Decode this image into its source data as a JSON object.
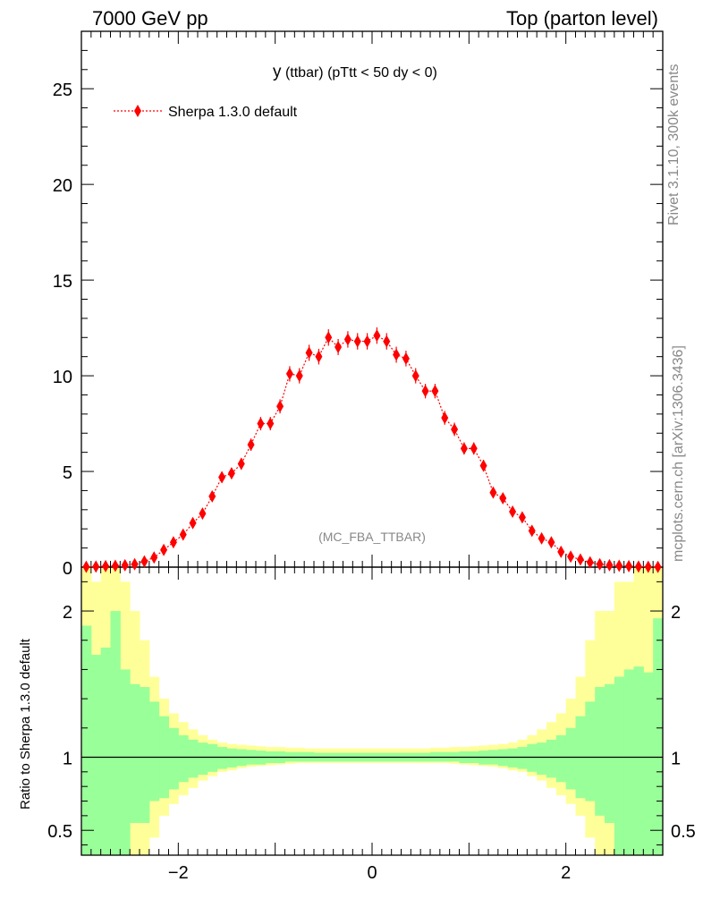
{
  "header": {
    "left": "7000 GeV pp",
    "right": "Top (parton level)"
  },
  "side_text": {
    "rivet": "Rivet 3.1.10,  300k events",
    "mcplots": "mcplots.cern.ch [arXiv:1306.3436]"
  },
  "colors": {
    "series": "#ff0000",
    "band_inner": "#99ff99",
    "band_outer": "#ffff99",
    "watermark": "#888888"
  },
  "chart_data": {
    "type": "scatter",
    "title": "y (ttbar) (pTtt < 50 dy < 0)",
    "title_main": "y",
    "title_rest": " (ttbar) (pTtt < 50 dy < 0)",
    "watermark": "(MC_FBA_TTBAR)",
    "legend": {
      "label": "Sherpa 1.3.0 default",
      "placement": "top-left"
    },
    "xlim": [
      -3.0,
      3.0
    ],
    "ylim": [
      0,
      28
    ],
    "ratio_ylim": [
      0.33,
      2.3
    ],
    "x_ticks": [
      -2,
      0,
      2
    ],
    "x_tick_labels": [
      "−2",
      "0",
      "2"
    ],
    "y_ticks": [
      0,
      5,
      10,
      15,
      20,
      25
    ],
    "y_tick_labels": [
      "0",
      "5",
      "10",
      "15",
      "20",
      "25"
    ],
    "ratio_ticks": [
      0.5,
      1,
      2
    ],
    "ratio_tick_labels": [
      "0.5",
      "1",
      "2"
    ],
    "ratio_ylabel": "Ratio to Sherpa 1.3.0 default",
    "bin_edges": [
      -3.0,
      -2.9,
      -2.8,
      -2.7,
      -2.6,
      -2.5,
      -2.4,
      -2.3,
      -2.2,
      -2.1,
      -2.0,
      -1.9,
      -1.8,
      -1.7,
      -1.6,
      -1.5,
      -1.4,
      -1.3,
      -1.2,
      -1.1,
      -1.0,
      -0.9,
      -0.8,
      -0.7,
      -0.6,
      -0.5,
      -0.4,
      -0.3,
      -0.2,
      -0.1,
      0.0,
      0.1,
      0.2,
      0.3,
      0.4,
      0.5,
      0.6,
      0.7,
      0.8,
      0.9,
      1.0,
      1.1,
      1.2,
      1.3,
      1.4,
      1.5,
      1.6,
      1.7,
      1.8,
      1.9,
      2.0,
      2.1,
      2.2,
      2.3,
      2.4,
      2.5,
      2.6,
      2.7,
      2.8,
      2.9,
      3.0
    ],
    "series": [
      {
        "name": "Sherpa 1.3.0 default",
        "x": [
          -2.95,
          -2.85,
          -2.75,
          -2.65,
          -2.55,
          -2.45,
          -2.35,
          -2.25,
          -2.15,
          -2.05,
          -1.95,
          -1.85,
          -1.75,
          -1.65,
          -1.55,
          -1.45,
          -1.35,
          -1.25,
          -1.15,
          -1.05,
          -0.95,
          -0.85,
          -0.75,
          -0.65,
          -0.55,
          -0.45,
          -0.35,
          -0.25,
          -0.15,
          -0.05,
          0.05,
          0.15,
          0.25,
          0.35,
          0.45,
          0.55,
          0.65,
          0.75,
          0.85,
          0.95,
          1.05,
          1.15,
          1.25,
          1.35,
          1.45,
          1.55,
          1.65,
          1.75,
          1.85,
          1.95,
          2.05,
          2.15,
          2.25,
          2.35,
          2.45,
          2.55,
          2.65,
          2.75,
          2.85,
          2.95
        ],
        "y": [
          0.02,
          0.03,
          0.05,
          0.07,
          0.1,
          0.15,
          0.3,
          0.5,
          0.9,
          1.3,
          1.7,
          2.3,
          2.8,
          3.7,
          4.7,
          4.9,
          5.4,
          6.4,
          7.5,
          7.5,
          8.4,
          10.1,
          10.0,
          11.2,
          11.0,
          12.0,
          11.5,
          11.9,
          11.8,
          11.8,
          12.1,
          11.8,
          11.1,
          10.9,
          10.0,
          9.2,
          9.2,
          7.8,
          7.2,
          6.2,
          6.2,
          5.3,
          3.9,
          3.6,
          2.9,
          2.6,
          1.9,
          1.5,
          1.3,
          0.8,
          0.55,
          0.4,
          0.25,
          0.15,
          0.1,
          0.07,
          0.05,
          0.03,
          0.02,
          0.01
        ],
        "yerr": [
          0.02,
          0.02,
          0.03,
          0.04,
          0.05,
          0.07,
          0.09,
          0.11,
          0.15,
          0.17,
          0.19,
          0.21,
          0.23,
          0.26,
          0.29,
          0.29,
          0.3,
          0.32,
          0.35,
          0.35,
          0.37,
          0.4,
          0.4,
          0.42,
          0.41,
          0.43,
          0.42,
          0.43,
          0.43,
          0.43,
          0.43,
          0.43,
          0.42,
          0.41,
          0.4,
          0.38,
          0.38,
          0.36,
          0.35,
          0.32,
          0.32,
          0.3,
          0.26,
          0.25,
          0.23,
          0.22,
          0.19,
          0.17,
          0.16,
          0.13,
          0.11,
          0.09,
          0.07,
          0.06,
          0.05,
          0.04,
          0.03,
          0.02,
          0.02,
          0.01
        ]
      }
    ],
    "ratio_band_inner": {
      "low": [
        0.3,
        0.3,
        0.3,
        0.3,
        0.3,
        0.55,
        0.55,
        0.7,
        0.72,
        0.78,
        0.83,
        0.86,
        0.88,
        0.9,
        0.92,
        0.93,
        0.94,
        0.95,
        0.95,
        0.96,
        0.96,
        0.97,
        0.97,
        0.97,
        0.97,
        0.97,
        0.97,
        0.97,
        0.97,
        0.97,
        0.97,
        0.97,
        0.97,
        0.97,
        0.97,
        0.97,
        0.97,
        0.97,
        0.97,
        0.96,
        0.96,
        0.95,
        0.95,
        0.94,
        0.93,
        0.92,
        0.9,
        0.88,
        0.86,
        0.83,
        0.78,
        0.72,
        0.7,
        0.6,
        0.55,
        0.3,
        0.3,
        0.3,
        0.3,
        0.3
      ],
      "high": [
        1.9,
        1.7,
        1.75,
        2.0,
        1.6,
        1.5,
        1.48,
        1.38,
        1.28,
        1.2,
        1.15,
        1.12,
        1.1,
        1.09,
        1.07,
        1.06,
        1.055,
        1.05,
        1.045,
        1.04,
        1.04,
        1.035,
        1.035,
        1.035,
        1.03,
        1.03,
        1.03,
        1.03,
        1.03,
        1.03,
        1.03,
        1.03,
        1.03,
        1.03,
        1.03,
        1.03,
        1.035,
        1.035,
        1.035,
        1.04,
        1.04,
        1.045,
        1.05,
        1.055,
        1.06,
        1.07,
        1.09,
        1.1,
        1.12,
        1.15,
        1.2,
        1.28,
        1.38,
        1.48,
        1.5,
        1.55,
        1.6,
        1.62,
        1.58,
        1.95
      ]
    },
    "ratio_band_outer": {
      "low": [
        0.3,
        0.3,
        0.3,
        0.3,
        0.3,
        0.3,
        0.3,
        0.45,
        0.6,
        0.68,
        0.74,
        0.79,
        0.84,
        0.87,
        0.9,
        0.91,
        0.925,
        0.935,
        0.94,
        0.945,
        0.95,
        0.955,
        0.96,
        0.96,
        0.96,
        0.96,
        0.96,
        0.96,
        0.96,
        0.96,
        0.96,
        0.96,
        0.96,
        0.96,
        0.96,
        0.96,
        0.96,
        0.96,
        0.955,
        0.95,
        0.945,
        0.94,
        0.935,
        0.925,
        0.91,
        0.9,
        0.87,
        0.84,
        0.79,
        0.74,
        0.68,
        0.6,
        0.45,
        0.3,
        0.3,
        0.3,
        0.3,
        0.3,
        0.3,
        0.3
      ],
      "high": [
        2.5,
        2.2,
        2.5,
        2.3,
        2.2,
        2.0,
        1.8,
        1.55,
        1.4,
        1.3,
        1.24,
        1.19,
        1.15,
        1.12,
        1.1,
        1.09,
        1.085,
        1.08,
        1.075,
        1.07,
        1.07,
        1.065,
        1.065,
        1.06,
        1.06,
        1.06,
        1.06,
        1.06,
        1.06,
        1.06,
        1.06,
        1.06,
        1.06,
        1.06,
        1.06,
        1.06,
        1.065,
        1.065,
        1.07,
        1.07,
        1.075,
        1.08,
        1.085,
        1.09,
        1.1,
        1.12,
        1.15,
        1.19,
        1.24,
        1.3,
        1.4,
        1.55,
        1.8,
        2.0,
        2.0,
        2.2,
        2.2,
        2.3,
        2.4,
        2.5
      ]
    }
  }
}
